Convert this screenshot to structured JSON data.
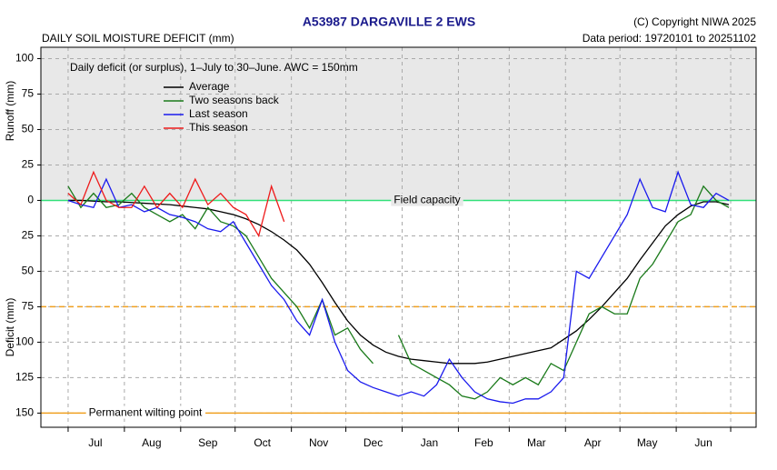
{
  "chart_data": {
    "type": "line",
    "title": "A53987  DARGAVILLE 2 EWS",
    "subtitle": "DAILY SOIL MOISTURE DEFICIT (mm)",
    "copyright": "(C) Copyright NIWA  2025",
    "data_period": "Data period:  19720101  to  20251102",
    "annotation": "Daily deficit (or surplus), 1–July to 30–June.  AWC = 150mm",
    "y_label_top": "Runoff (mm)",
    "y_label_bottom": "Deficit (mm)",
    "xlim": [
      -15,
      379
    ],
    "ylim": [
      -160,
      108
    ],
    "yticks": [
      100,
      75,
      50,
      25,
      0,
      {
        "value": -25,
        "label": "25"
      },
      {
        "value": -50,
        "label": "50"
      },
      {
        "value": -75,
        "label": "75"
      },
      {
        "value": -100,
        "label": "100"
      },
      {
        "value": -125,
        "label": "125"
      },
      {
        "value": -150,
        "label": "150"
      }
    ],
    "xticks": [
      {
        "value": 15,
        "label": "Jul"
      },
      {
        "value": 46,
        "label": "Aug"
      },
      {
        "value": 77,
        "label": "Sep"
      },
      {
        "value": 107,
        "label": "Oct"
      },
      {
        "value": 138,
        "label": "Nov"
      },
      {
        "value": 168,
        "label": "Dec"
      },
      {
        "value": 199,
        "label": "Jan"
      },
      {
        "value": 229,
        "label": "Feb"
      },
      {
        "value": 258,
        "label": "Mar"
      },
      {
        "value": 289,
        "label": "Apr"
      },
      {
        "value": 319,
        "label": "May"
      },
      {
        "value": 350,
        "label": "Jun"
      }
    ],
    "xgrid": [
      0,
      31,
      62,
      92,
      123,
      153,
      184,
      215,
      243,
      274,
      304,
      335,
      365
    ],
    "grid": true,
    "shade_above": 0,
    "shade_color": "#e8e8e8",
    "reference_lines": [
      {
        "value": 0,
        "label": "Field capacity",
        "color": "#33e07a",
        "dash": false
      },
      {
        "value": -75,
        "color": "#f0a020",
        "dash": true
      },
      {
        "value": -150,
        "label": "Permanent wilting point",
        "color": "#f0a020",
        "dash": false
      }
    ],
    "x": [
      0,
      7,
      14,
      21,
      28,
      35,
      42,
      49,
      56,
      63,
      70,
      77,
      84,
      91,
      98,
      105,
      112,
      119,
      126,
      133,
      140,
      147,
      154,
      161,
      168,
      175,
      182,
      189,
      196,
      203,
      210,
      217,
      224,
      231,
      238,
      245,
      252,
      259,
      266,
      273,
      280,
      287,
      294,
      301,
      308,
      315,
      322,
      329,
      336,
      343,
      350,
      357,
      364
    ],
    "series": [
      {
        "name": "Average",
        "color": "#000000",
        "values": [
          0,
          0,
          -0.5,
          -1,
          -1,
          -1.5,
          -2,
          -2.5,
          -3,
          -4,
          -5,
          -6,
          -8,
          -10,
          -13,
          -17,
          -22,
          -28,
          -35,
          -45,
          -58,
          -72,
          -85,
          -95,
          -102,
          -107,
          -110,
          -112,
          -113,
          -114,
          -115,
          -115,
          -115,
          -114,
          -112,
          -110,
          -108,
          -106,
          -104,
          -98,
          -92,
          -84,
          -75,
          -65,
          -55,
          -42,
          -30,
          -18,
          -10,
          -4,
          -1,
          -1,
          -3
        ]
      },
      {
        "name": "Two seasons back",
        "color": "#1a7a1a",
        "values": [
          10,
          -5,
          5,
          -5,
          -3,
          5,
          -5,
          -10,
          -15,
          -10,
          -20,
          -5,
          -15,
          -18,
          -25,
          -40,
          -55,
          -65,
          -75,
          -90,
          -70,
          -95,
          -90,
          -105,
          -115,
          null,
          -95,
          -115,
          -120,
          -125,
          -130,
          -138,
          -140,
          -135,
          -125,
          -130,
          -125,
          -130,
          -115,
          -120,
          -100,
          -80,
          -75,
          -80,
          -80,
          -55,
          -45,
          -30,
          -15,
          -10,
          10,
          0,
          -5
        ]
      },
      {
        "name": "Last season",
        "color": "#1a1aee",
        "values": [
          0,
          -3,
          -5,
          15,
          -5,
          -3,
          -8,
          -5,
          -10,
          -12,
          -15,
          -20,
          -22,
          -15,
          -30,
          -45,
          -60,
          -70,
          -85,
          -95,
          -70,
          -100,
          -120,
          -128,
          -132,
          -135,
          -138,
          -135,
          -138,
          -130,
          -112,
          -125,
          -135,
          -140,
          -142,
          -143,
          -140,
          -140,
          -135,
          -125,
          -50,
          -55,
          -40,
          -25,
          -10,
          15,
          -5,
          -8,
          20,
          -3,
          -5,
          5,
          0
        ]
      },
      {
        "name": "This season",
        "color": "#ee1a1a",
        "values": [
          5,
          -3,
          20,
          0,
          -5,
          -5,
          10,
          -5,
          5,
          -5,
          15,
          -3,
          5,
          -5,
          -10,
          -25,
          10,
          -15,
          null,
          null,
          null,
          null,
          null,
          null,
          null,
          null,
          null,
          null,
          null,
          null,
          null,
          null,
          null,
          null,
          null,
          null,
          null,
          null,
          null,
          null,
          null,
          null,
          null,
          null,
          null,
          null,
          null,
          null,
          null,
          null,
          null,
          null,
          null
        ]
      }
    ]
  }
}
